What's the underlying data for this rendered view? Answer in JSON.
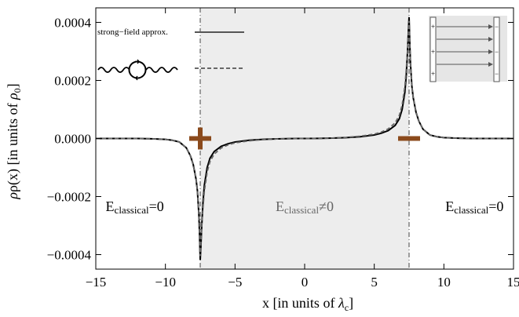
{
  "chart_data": {
    "type": "line",
    "title": "",
    "xlabel": {
      "main": "x [in units of ",
      "symbol": "λ",
      "sub": "c",
      "close": "]"
    },
    "ylabel": {
      "main": "ρ(x) [in units of ",
      "symbol": "ρ",
      "sub": "0",
      "close": "]"
    },
    "xlim": [
      -15,
      15
    ],
    "ylim": [
      -0.00045,
      0.00045
    ],
    "x_ticks": [
      -15,
      -10,
      -5,
      0,
      5,
      10,
      15
    ],
    "x_tick_labels": [
      "−15",
      "−10",
      "−5",
      "0",
      "5",
      "10",
      "15"
    ],
    "y_ticks": [
      -0.0004,
      -0.0002,
      0,
      0.0002,
      0.0004
    ],
    "y_tick_labels": [
      "−0.0004",
      "−0.0002",
      "0.0000",
      "0.0002",
      "0.0004"
    ],
    "shaded_region": {
      "x0": -7.5,
      "x1": 7.5,
      "color": "#ededed"
    },
    "plate_positions": [
      -7.5,
      7.5
    ],
    "region_labels": [
      {
        "text": "E",
        "sub": "classical",
        "rel": "=0",
        "x": -12.2,
        "y": -0.00025,
        "color": "#000000"
      },
      {
        "text": "E",
        "sub": "classical",
        "rel": "≠0",
        "x": 0,
        "y": -0.00025,
        "color": "#666666"
      },
      {
        "text": "E",
        "sub": "classical",
        "rel": "=0",
        "x": 12.2,
        "y": -0.00025,
        "color": "#000000"
      }
    ],
    "charge_signs": [
      {
        "sign": "plus",
        "x": -7.5,
        "y": 0,
        "color": "#8b4a1c"
      },
      {
        "sign": "minus",
        "x": 7.5,
        "y": 0,
        "color": "#8b4a1c"
      }
    ],
    "series": [
      {
        "name": "strong−field approx.",
        "style": "solid",
        "color": "#555555",
        "peak": 0.000418,
        "x": [
          -15,
          -14,
          -13,
          -12,
          -11,
          -10,
          -9.5,
          -9,
          -8.5,
          -8.2,
          -8,
          -7.8,
          -7.7,
          -7.6,
          -7.55,
          -7.5,
          -7.45,
          -7.4,
          -7.3,
          -7.2,
          -7,
          -6.8,
          -6.5,
          -6,
          -5.5,
          -5,
          -4,
          -3,
          -2,
          -1,
          0,
          1,
          2,
          3,
          4,
          5,
          5.5,
          6,
          6.5,
          6.8,
          7,
          7.2,
          7.3,
          7.4,
          7.45,
          7.5,
          7.55,
          7.6,
          7.7,
          7.8,
          8,
          8.2,
          8.5,
          9,
          9.5,
          10,
          11,
          12,
          13,
          14,
          15
        ],
        "y": [
          0,
          0,
          0,
          0,
          -1e-06,
          -3e-06,
          -6e-06,
          -1.2e-05,
          -3.2e-05,
          -6e-05,
          -9e-05,
          -0.00014,
          -0.00018,
          -0.00026,
          -0.00033,
          -0.000418,
          -0.00037,
          -0.00031,
          -0.00022,
          -0.00016,
          -0.0001,
          -6.8e-05,
          -4.5e-05,
          -2.7e-05,
          -1.8e-05,
          -1.2e-05,
          -6e-06,
          -3e-06,
          -1.2e-06,
          -4e-07,
          0,
          4e-07,
          1.2e-06,
          3e-06,
          6e-06,
          1.2e-05,
          1.8e-05,
          2.7e-05,
          4.5e-05,
          6.8e-05,
          0.0001,
          0.00016,
          0.00022,
          0.00031,
          0.00037,
          0.000418,
          0.00033,
          0.00026,
          0.00018,
          0.00014,
          9e-05,
          6e-05,
          3.2e-05,
          1.2e-05,
          6e-06,
          3e-06,
          1e-06,
          0,
          0,
          0,
          0
        ]
      },
      {
        "name": "",
        "style": "dashed",
        "color": "#555555",
        "peak": 0.000405,
        "x": [
          -15,
          -14,
          -13,
          -12,
          -11,
          -10,
          -9.5,
          -9,
          -8.5,
          -8.2,
          -8,
          -7.8,
          -7.7,
          -7.6,
          -7.55,
          -7.5,
          -7.45,
          -7.4,
          -7.3,
          -7.2,
          -7,
          -6.8,
          -6.5,
          -6,
          -5.5,
          -5,
          -4,
          -3,
          -2,
          -1,
          0,
          1,
          2,
          3,
          4,
          5,
          5.5,
          6,
          6.5,
          6.8,
          7,
          7.2,
          7.3,
          7.4,
          7.45,
          7.5,
          7.55,
          7.6,
          7.7,
          7.8,
          8,
          8.2,
          8.5,
          9,
          9.5,
          10,
          11,
          12,
          13,
          14,
          15
        ],
        "y": [
          0,
          0,
          0,
          0,
          -1e-06,
          -3e-06,
          -6e-06,
          -1.2e-05,
          -3.2e-05,
          -6e-05,
          -9e-05,
          -0.00014,
          -0.00018,
          -0.00026,
          -0.00033,
          -0.000405,
          -0.00036,
          -0.00031,
          -0.00024,
          -0.00018,
          -0.000115,
          -8e-05,
          -5.4e-05,
          -3.3e-05,
          -2.2e-05,
          -1.5e-05,
          -8e-06,
          -4e-06,
          -1.6e-06,
          -5e-07,
          0,
          5e-07,
          1.6e-06,
          4e-06,
          8e-06,
          1.5e-05,
          2.2e-05,
          3.3e-05,
          5.4e-05,
          8e-05,
          0.000115,
          0.00018,
          0.00024,
          0.00031,
          0.00036,
          0.000405,
          0.00033,
          0.00026,
          0.00018,
          0.00014,
          9e-05,
          6e-05,
          3.2e-05,
          1.2e-05,
          6e-06,
          3e-06,
          1e-06,
          0,
          0,
          0,
          0
        ]
      }
    ],
    "legend": {
      "placement": "top-left"
    },
    "grid": false
  },
  "colors": {
    "shade": "#ededed",
    "curve": "#555555",
    "charge": "#8b4a1c",
    "axis": "#000000"
  },
  "icons": {
    "loop_diagram": "vacuum-polarization-loop-icon",
    "capacitor": "capacitor-plates-icon"
  }
}
